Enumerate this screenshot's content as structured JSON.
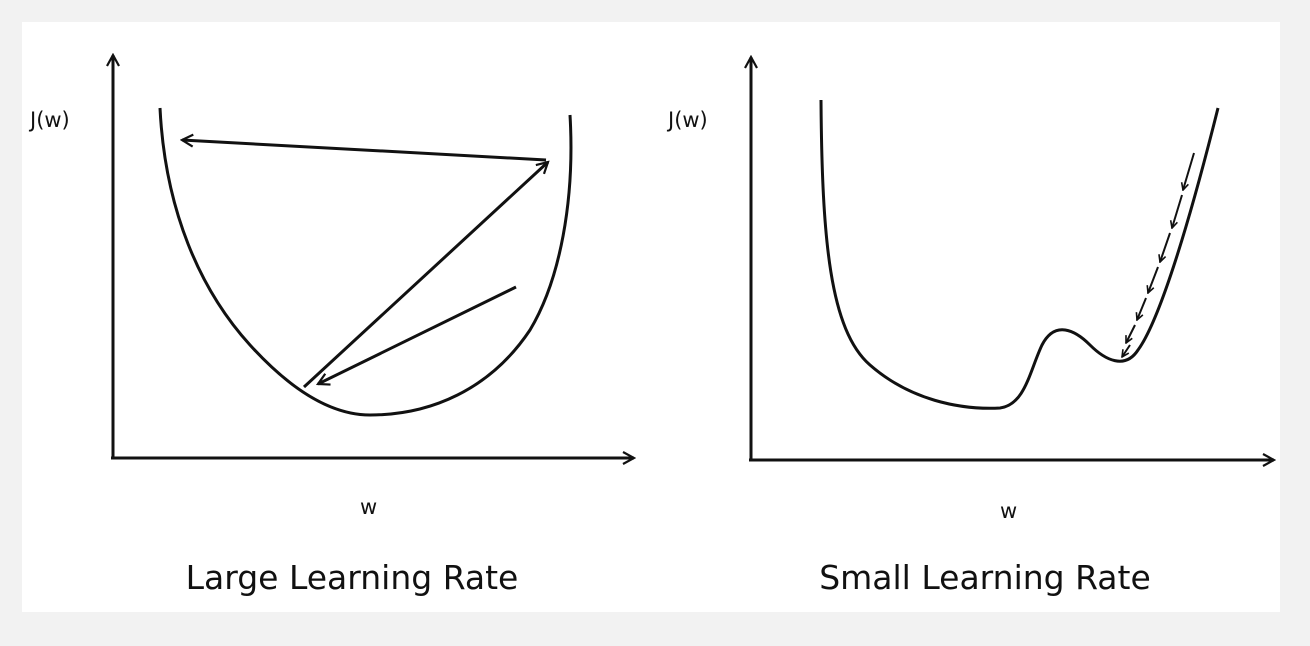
{
  "panels": [
    {
      "y_label": "J(w)",
      "x_label": "w",
      "caption": "Large Learning Rate"
    },
    {
      "y_label": "J(w)",
      "x_label": "w",
      "caption": "Small Learning Rate"
    }
  ],
  "colors": {
    "stroke": "#111111",
    "background": "#ffffff",
    "page": "#f2f2f2"
  }
}
